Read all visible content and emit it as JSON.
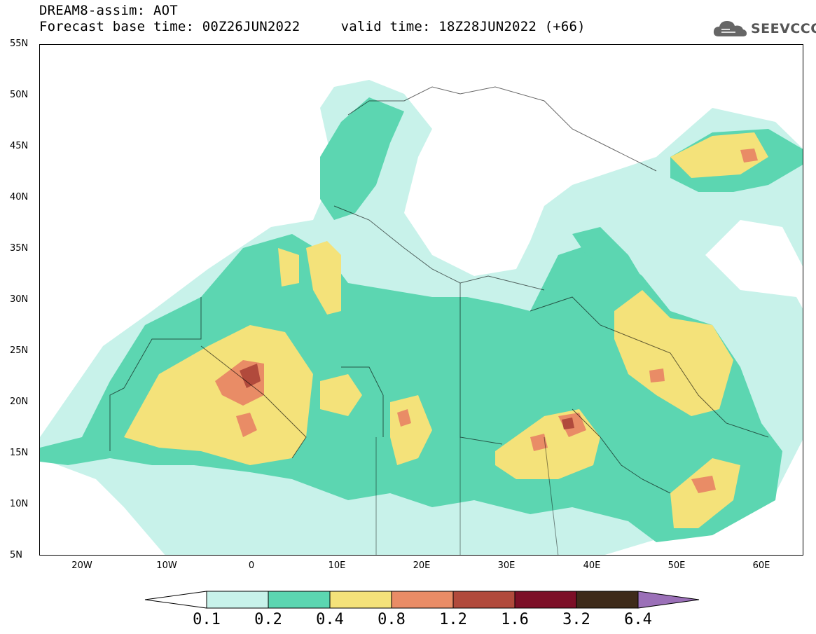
{
  "title": {
    "line1": "DREAM8-assim: AOT",
    "line2": "Forecast base time: 00Z26JUN2022     valid time: 18Z28JUN2022 (+66)"
  },
  "logo": {
    "text": "SEEVCCC",
    "icon": "cloud-icon"
  },
  "map": {
    "lat_labels": [
      "55N",
      "50N",
      "45N",
      "40N",
      "35N",
      "30N",
      "25N",
      "20N",
      "15N",
      "10N",
      "5N"
    ],
    "lon_labels": [
      "20W",
      "10W",
      "0",
      "10E",
      "20E",
      "30E",
      "40E",
      "50E",
      "60E"
    ]
  },
  "colorbar": {
    "labels": [
      "0.1",
      "0.2",
      "0.4",
      "0.8",
      "1.2",
      "1.6",
      "3.2",
      "6.4"
    ],
    "colors": [
      "#ffffff",
      "#c8f2ea",
      "#5cd6b1",
      "#f4e27a",
      "#e98c66",
      "#b14a3c",
      "#7c0f27",
      "#3e2b1a",
      "#9b70b8"
    ]
  }
}
